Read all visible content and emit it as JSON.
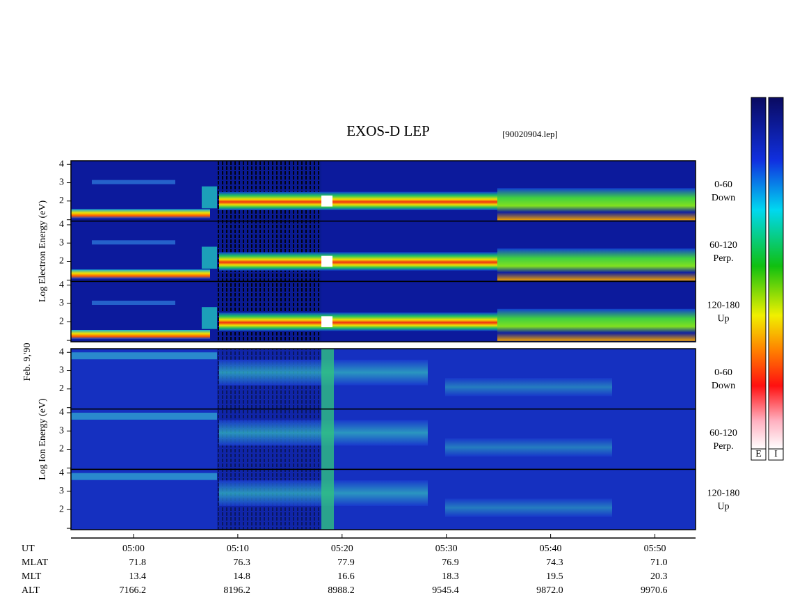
{
  "chart_data": {
    "type": "spectrogram",
    "title": "EXOS-D LEP",
    "subtitle": "[90020904.lep]",
    "date": "Feb. 9,'90",
    "ylim": [
      0.9,
      4.2
    ],
    "yticks": [
      2,
      3,
      4
    ],
    "xlim": [
      294,
      353.9
    ],
    "xticks": [
      {
        "value": 300,
        "label": "05:00"
      },
      {
        "value": 310,
        "label": "05:10"
      },
      {
        "value": 320,
        "label": "05:20"
      },
      {
        "value": 330,
        "label": "05:30"
      },
      {
        "value": 340,
        "label": "05:40"
      },
      {
        "value": 350,
        "label": "05:50"
      }
    ],
    "groups": [
      {
        "ylabel": "Log  Electron  Energy (eV)",
        "kind": "electron",
        "panels": [
          {
            "labels": [
              "0-60",
              "Down"
            ]
          },
          {
            "labels": [
              "60-120",
              "Perp."
            ]
          },
          {
            "labels": [
              "120-180",
              "Up"
            ]
          }
        ]
      },
      {
        "ylabel": "Log  Ion  Energy (eV)",
        "kind": "ion",
        "panels": [
          {
            "labels": [
              "0-60",
              "Down"
            ]
          },
          {
            "labels": [
              "60-120",
              "Perp."
            ]
          },
          {
            "labels": [
              "120-180",
              "Up"
            ]
          }
        ]
      }
    ],
    "ephemeris": {
      "labels": [
        "UT",
        "MLAT",
        "MLT",
        "ALT"
      ],
      "rows": [
        [
          "71.8",
          "76.3",
          "77.9",
          "76.9",
          "74.3",
          "71.0"
        ],
        [
          "13.4",
          "14.8",
          "16.6",
          "18.3",
          "19.5",
          "20.3"
        ],
        [
          "7166.2",
          "8196.2",
          "8988.2",
          "9545.4",
          "9872.0",
          "9970.6"
        ]
      ]
    },
    "colorbars": [
      "E",
      "I"
    ]
  }
}
